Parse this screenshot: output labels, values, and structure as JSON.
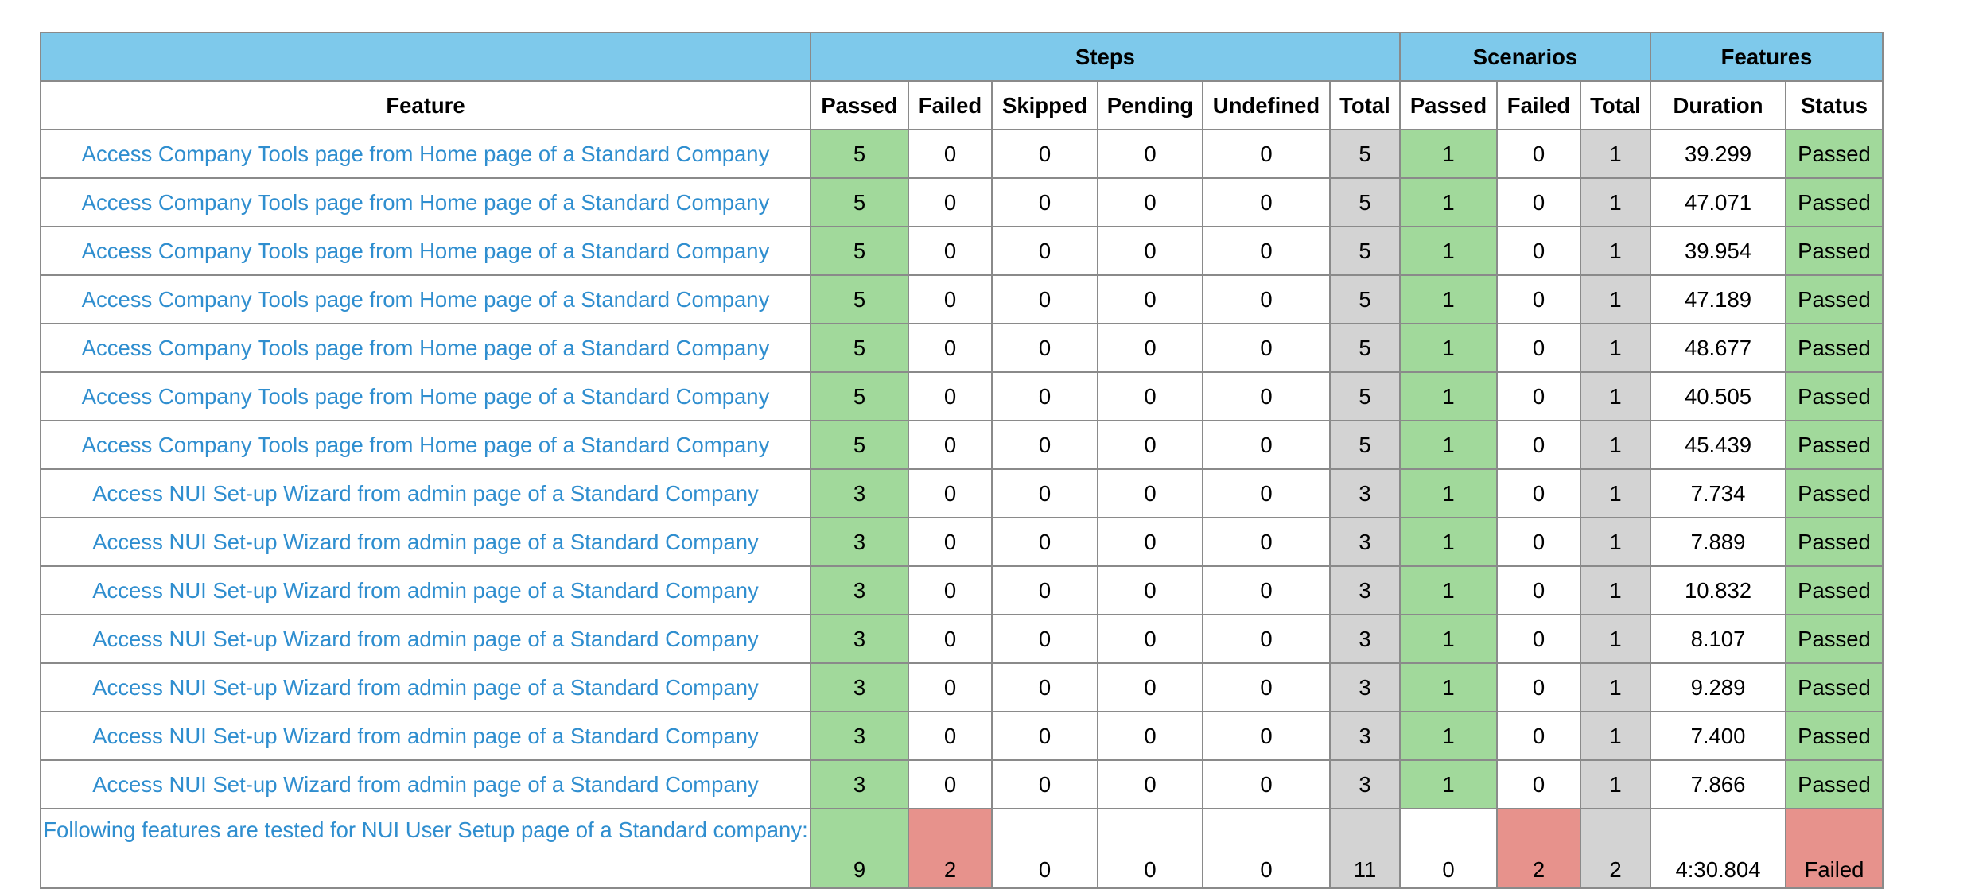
{
  "header": {
    "groups": {
      "steps": "Steps",
      "scenarios": "Scenarios",
      "features": "Features"
    },
    "columns": {
      "feature": "Feature",
      "steps_passed": "Passed",
      "steps_failed": "Failed",
      "steps_skipped": "Skipped",
      "steps_pending": "Pending",
      "steps_undefined": "Undefined",
      "steps_total": "Total",
      "scenarios_passed": "Passed",
      "scenarios_failed": "Failed",
      "scenarios_total": "Total",
      "duration": "Duration",
      "status": "Status"
    }
  },
  "colors": {
    "header_group_bg": "#7ec9eb",
    "passed": "#a1d99b",
    "failed": "#e7928c",
    "skipped": "#8fa8f2",
    "pending": "#f6f199",
    "undefined": "#f0b77a",
    "total": "#d3d3d3",
    "link": "#2f8ecf"
  },
  "rows": [
    {
      "feature": "Access Company Tools page from Home page of a Standard Company",
      "passed": "5",
      "failed": "0",
      "skipped": "0",
      "pending": "0",
      "undefined": "0",
      "total": "5",
      "sc_passed": "1",
      "sc_failed": "0",
      "sc_total": "1",
      "duration": "39.299",
      "status": "Passed"
    },
    {
      "feature": "Access Company Tools page from Home page of a Standard Company",
      "passed": "5",
      "failed": "0",
      "skipped": "0",
      "pending": "0",
      "undefined": "0",
      "total": "5",
      "sc_passed": "1",
      "sc_failed": "0",
      "sc_total": "1",
      "duration": "47.071",
      "status": "Passed"
    },
    {
      "feature": "Access Company Tools page from Home page of a Standard Company",
      "passed": "5",
      "failed": "0",
      "skipped": "0",
      "pending": "0",
      "undefined": "0",
      "total": "5",
      "sc_passed": "1",
      "sc_failed": "0",
      "sc_total": "1",
      "duration": "39.954",
      "status": "Passed"
    },
    {
      "feature": "Access Company Tools page from Home page of a Standard Company",
      "passed": "5",
      "failed": "0",
      "skipped": "0",
      "pending": "0",
      "undefined": "0",
      "total": "5",
      "sc_passed": "1",
      "sc_failed": "0",
      "sc_total": "1",
      "duration": "47.189",
      "status": "Passed"
    },
    {
      "feature": "Access Company Tools page from Home page of a Standard Company",
      "passed": "5",
      "failed": "0",
      "skipped": "0",
      "pending": "0",
      "undefined": "0",
      "total": "5",
      "sc_passed": "1",
      "sc_failed": "0",
      "sc_total": "1",
      "duration": "48.677",
      "status": "Passed"
    },
    {
      "feature": "Access Company Tools page from Home page of a Standard Company",
      "passed": "5",
      "failed": "0",
      "skipped": "0",
      "pending": "0",
      "undefined": "0",
      "total": "5",
      "sc_passed": "1",
      "sc_failed": "0",
      "sc_total": "1",
      "duration": "40.505",
      "status": "Passed"
    },
    {
      "feature": "Access Company Tools page from Home page of a Standard Company",
      "passed": "5",
      "failed": "0",
      "skipped": "0",
      "pending": "0",
      "undefined": "0",
      "total": "5",
      "sc_passed": "1",
      "sc_failed": "0",
      "sc_total": "1",
      "duration": "45.439",
      "status": "Passed"
    },
    {
      "feature": "Access NUI Set-up Wizard from admin page of a Standard Company",
      "passed": "3",
      "failed": "0",
      "skipped": "0",
      "pending": "0",
      "undefined": "0",
      "total": "3",
      "sc_passed": "1",
      "sc_failed": "0",
      "sc_total": "1",
      "duration": "7.734",
      "status": "Passed"
    },
    {
      "feature": "Access NUI Set-up Wizard from admin page of a Standard Company",
      "passed": "3",
      "failed": "0",
      "skipped": "0",
      "pending": "0",
      "undefined": "0",
      "total": "3",
      "sc_passed": "1",
      "sc_failed": "0",
      "sc_total": "1",
      "duration": "7.889",
      "status": "Passed"
    },
    {
      "feature": "Access NUI Set-up Wizard from admin page of a Standard Company",
      "passed": "3",
      "failed": "0",
      "skipped": "0",
      "pending": "0",
      "undefined": "0",
      "total": "3",
      "sc_passed": "1",
      "sc_failed": "0",
      "sc_total": "1",
      "duration": "10.832",
      "status": "Passed"
    },
    {
      "feature": "Access NUI Set-up Wizard from admin page of a Standard Company",
      "passed": "3",
      "failed": "0",
      "skipped": "0",
      "pending": "0",
      "undefined": "0",
      "total": "3",
      "sc_passed": "1",
      "sc_failed": "0",
      "sc_total": "1",
      "duration": "8.107",
      "status": "Passed"
    },
    {
      "feature": "Access NUI Set-up Wizard from admin page of a Standard Company",
      "passed": "3",
      "failed": "0",
      "skipped": "0",
      "pending": "0",
      "undefined": "0",
      "total": "3",
      "sc_passed": "1",
      "sc_failed": "0",
      "sc_total": "1",
      "duration": "9.289",
      "status": "Passed"
    },
    {
      "feature": "Access NUI Set-up Wizard from admin page of a Standard Company",
      "passed": "3",
      "failed": "0",
      "skipped": "0",
      "pending": "0",
      "undefined": "0",
      "total": "3",
      "sc_passed": "1",
      "sc_failed": "0",
      "sc_total": "1",
      "duration": "7.400",
      "status": "Passed"
    },
    {
      "feature": "Access NUI Set-up Wizard from admin page of a Standard Company",
      "passed": "3",
      "failed": "0",
      "skipped": "0",
      "pending": "0",
      "undefined": "0",
      "total": "3",
      "sc_passed": "1",
      "sc_failed": "0",
      "sc_total": "1",
      "duration": "7.866",
      "status": "Passed"
    },
    {
      "feature": "Following features are tested for NUI User Setup page of a Standard company:",
      "passed": "9",
      "failed": "2",
      "skipped": "0",
      "pending": "0",
      "undefined": "0",
      "total": "11",
      "sc_passed": "0",
      "sc_failed": "2",
      "sc_total": "2",
      "duration": "4:30.804",
      "status": "Failed"
    }
  ]
}
